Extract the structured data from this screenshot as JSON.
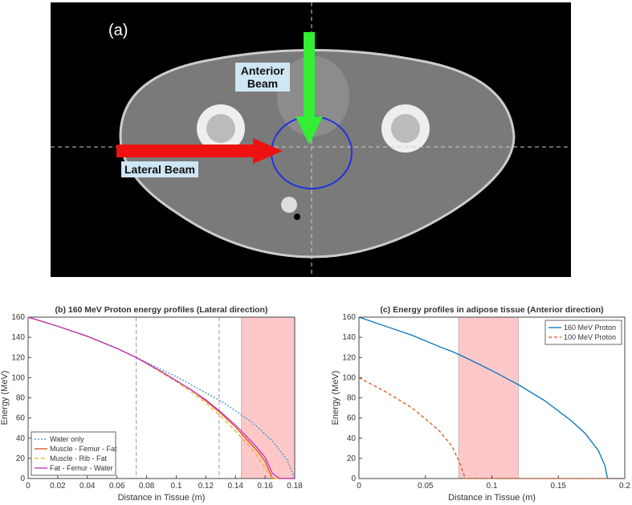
{
  "image": {
    "panel_label": "(a)",
    "annotations": [
      "Anterior Beam",
      "Lateral Beam"
    ]
  },
  "chart_data": [
    {
      "type": "line",
      "title": "(b) 160 MeV Proton energy profiles (Lateral direction)",
      "x_label": "Distance in Tissue (m)",
      "y_label": "Energy (MeV)",
      "x": [
        0,
        0.02,
        0.04,
        0.06,
        0.073,
        0.09,
        0.1,
        0.11,
        0.12,
        0.13,
        0.14,
        0.15,
        0.155,
        0.16,
        0.165,
        0.17,
        0.175,
        0.18
      ],
      "series": [
        {
          "name": "Water only",
          "color": "#3b8fd0",
          "dash": "2,2",
          "values": [
            160,
            151,
            141,
            129,
            120,
            108,
            101,
            93,
            85,
            77,
            67,
            57,
            51,
            44,
            37,
            28,
            18,
            0
          ]
        },
        {
          "name": "Muscle - Femur - Fat",
          "color": "#d95319",
          "dash": "",
          "values": [
            160,
            151,
            141,
            129,
            120,
            106,
            97,
            88,
            77,
            65,
            51,
            35,
            27,
            17,
            0,
            0,
            0,
            0
          ]
        },
        {
          "name": "Muscle - Rib - Fat",
          "color": "#edb120",
          "dash": "5,3",
          "values": [
            160,
            151,
            141,
            129,
            120,
            105,
            96,
            86,
            75,
            62,
            47,
            31,
            22,
            10,
            0,
            0,
            0,
            0
          ]
        },
        {
          "name": "Fat - Femur - Water",
          "color": "#c030c0",
          "dash": "",
          "values": [
            160,
            151,
            141,
            129,
            120,
            106,
            97,
            88,
            78,
            66,
            53,
            38,
            30,
            21,
            5,
            0,
            0,
            0
          ]
        }
      ],
      "vlines": [
        0.073,
        0.129
      ],
      "regions": [
        [
          0.144,
          0.18
        ]
      ],
      "xlim": [
        0,
        0.18
      ],
      "xticks": [
        0,
        0.02,
        0.04,
        0.06,
        0.08,
        0.1,
        0.12,
        0.14,
        0.16,
        0.18
      ],
      "ylim": [
        0,
        160
      ],
      "yticks": [
        0,
        20,
        40,
        60,
        80,
        100,
        120,
        140,
        160
      ],
      "legend": "lower left"
    },
    {
      "type": "line",
      "title": "(c) Energy profiles in adipose tissue (Anterior direction)",
      "x_label": "Distance in Tissue (m)",
      "y_label": "Energy (MeV)",
      "x": [
        0,
        0.02,
        0.04,
        0.06,
        0.07,
        0.075,
        0.08,
        0.1,
        0.12,
        0.14,
        0.16,
        0.17,
        0.18,
        0.185,
        0.187,
        0.2
      ],
      "series": [
        {
          "name": "160 MeV Proton",
          "color": "#0072bd",
          "dash": "",
          "values": [
            160,
            151,
            142,
            131,
            126,
            123,
            120,
            107,
            93,
            77,
            57,
            45,
            28,
            13,
            0,
            0
          ]
        },
        {
          "name": "100 MeV Proton",
          "color": "#d95319",
          "dash": "4,3",
          "values": [
            100,
            86,
            70,
            48,
            32,
            18,
            0,
            0,
            0,
            0,
            0,
            0,
            0,
            0,
            0,
            0
          ]
        }
      ],
      "vlines": [],
      "regions": [
        [
          0.075,
          0.12
        ]
      ],
      "xlim": [
        0,
        0.2
      ],
      "xticks": [
        0,
        0.05,
        0.1,
        0.15,
        0.2
      ],
      "ylim": [
        0,
        160
      ],
      "yticks": [
        0,
        20,
        40,
        60,
        80,
        100,
        120,
        140,
        160
      ],
      "legend": "upper right"
    }
  ]
}
